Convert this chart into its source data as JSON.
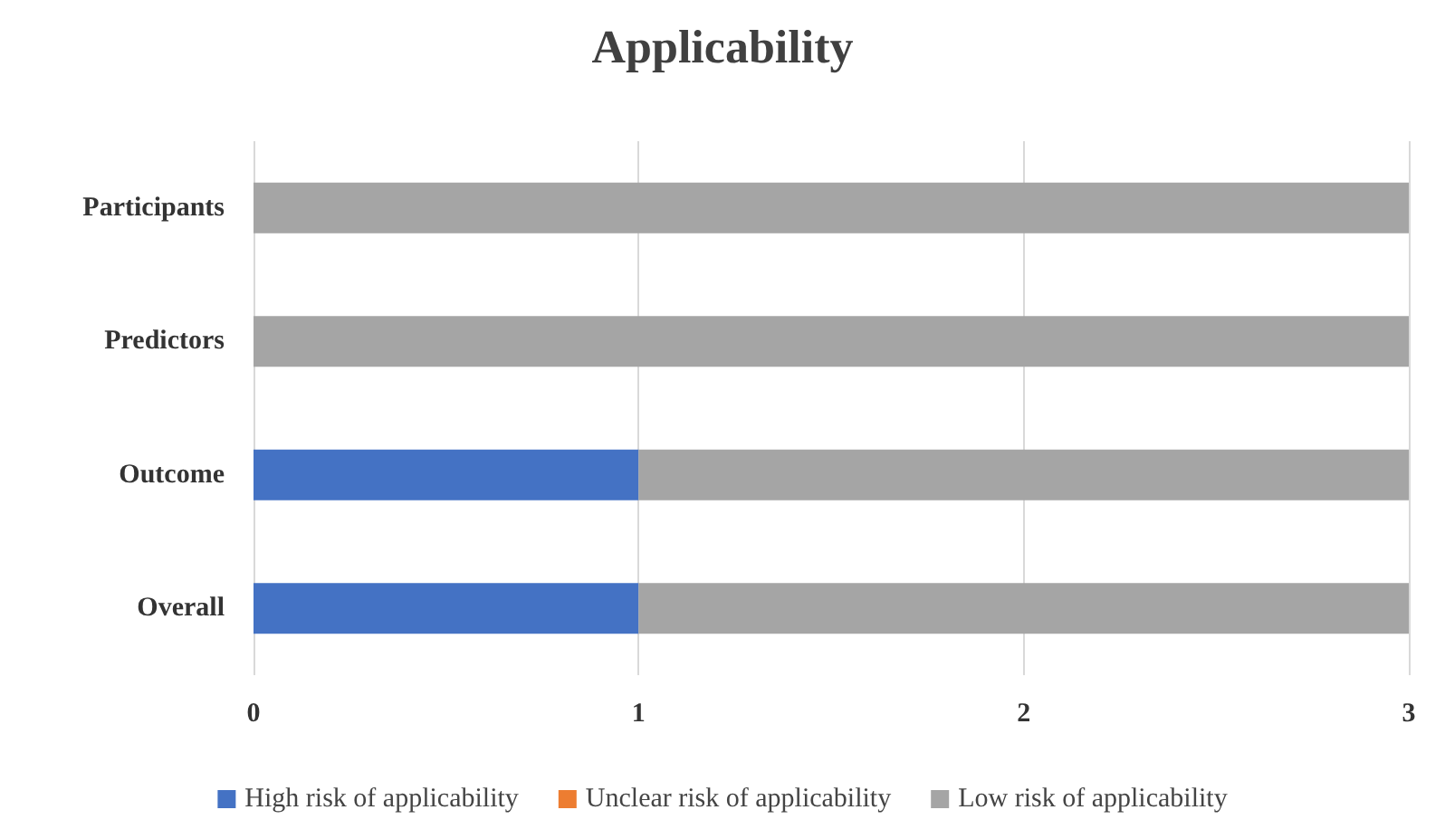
{
  "chart_data": {
    "type": "bar",
    "title": "Applicability",
    "orientation": "horizontal",
    "stacked": true,
    "categories": [
      "Participants",
      "Predictors",
      "Outcome",
      "Overall"
    ],
    "series": [
      {
        "name": "High risk of applicability",
        "color": "#4472c4",
        "values": [
          0,
          0,
          1,
          1
        ]
      },
      {
        "name": "Unclear risk of applicability",
        "color": "#ed7d31",
        "values": [
          0,
          0,
          0,
          0
        ]
      },
      {
        "name": "Low risk of applicability",
        "color": "#a5a5a5",
        "values": [
          3,
          3,
          2,
          2
        ]
      }
    ],
    "xlim": [
      0,
      3
    ],
    "xticks": [
      0,
      1,
      2,
      3
    ],
    "grid": "x",
    "legend": "bottom"
  }
}
